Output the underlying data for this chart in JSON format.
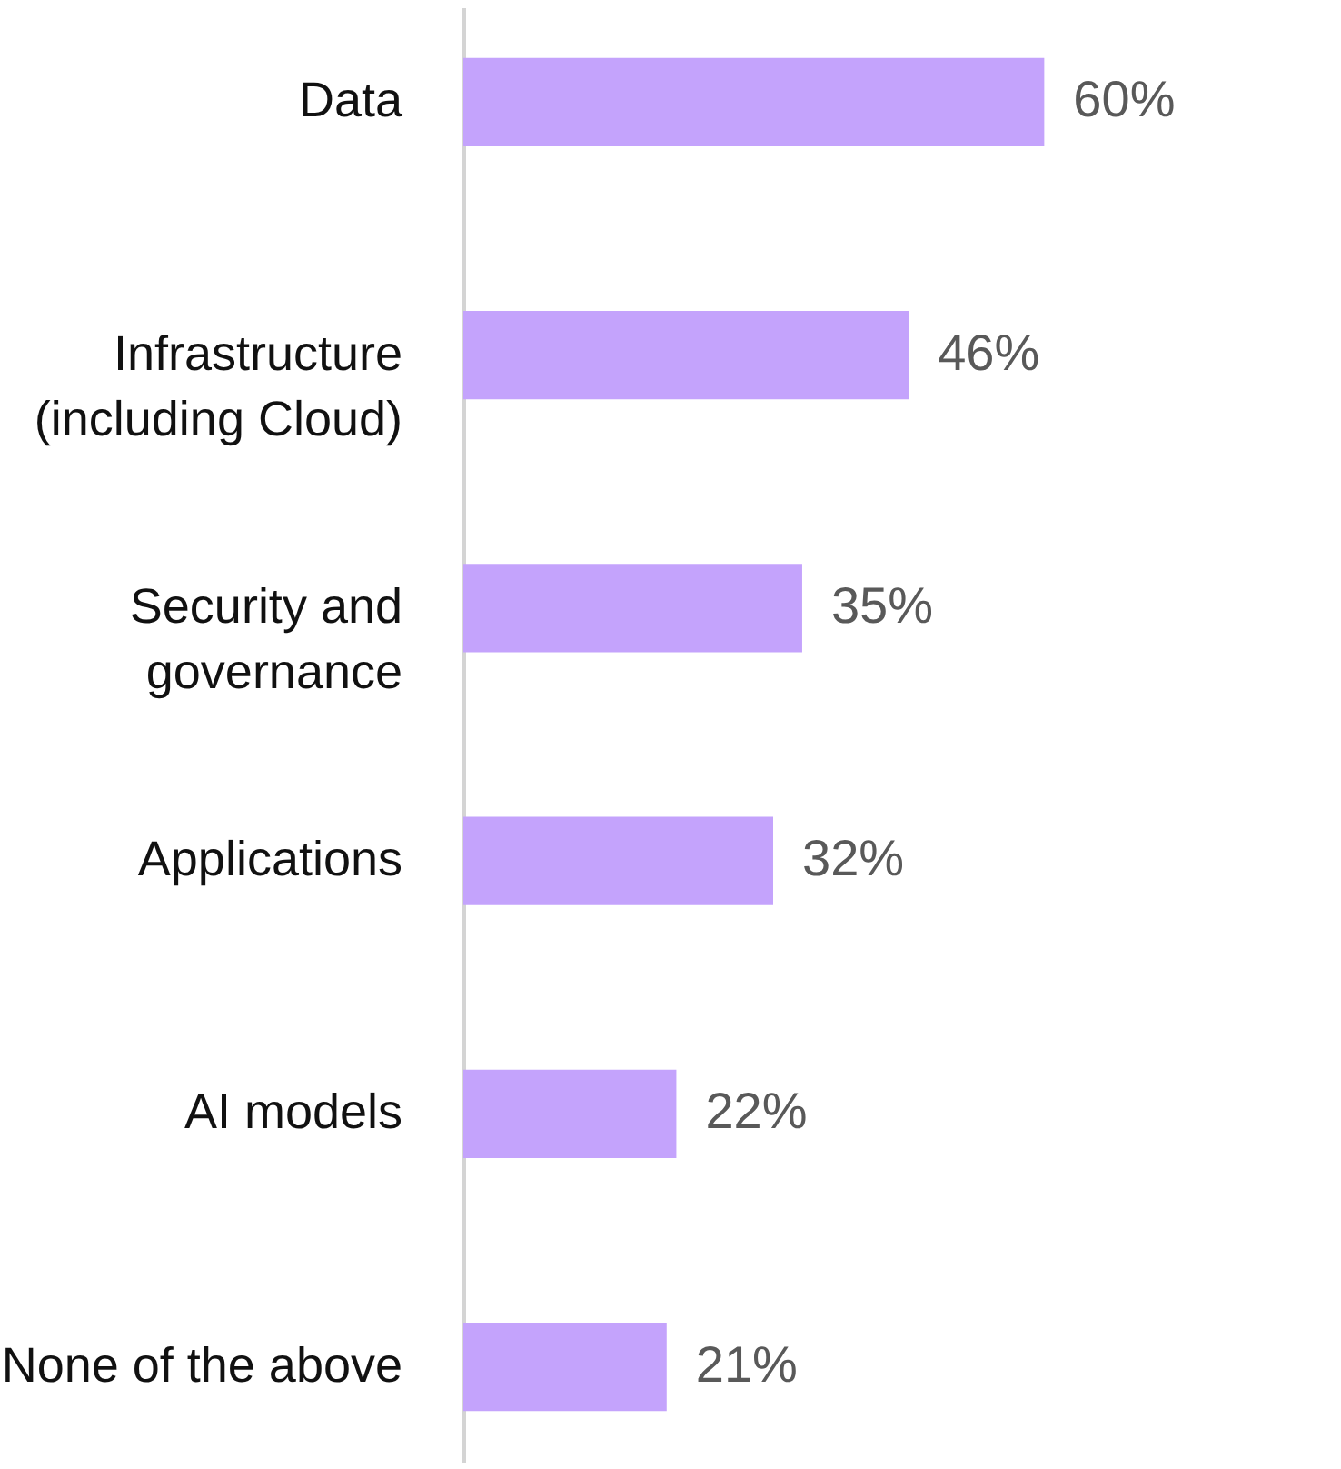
{
  "chart_data": {
    "type": "bar",
    "orientation": "horizontal",
    "categories": [
      "Data",
      "Infrastructure (including Cloud)",
      "Security and governance",
      "Applications",
      "AI models",
      "None of the above"
    ],
    "values": [
      60,
      46,
      35,
      32,
      22,
      21
    ],
    "value_labels": [
      "60%",
      "46%",
      "35%",
      "32%",
      "22%",
      "21%"
    ],
    "color": "#c4a3fc"
  }
}
